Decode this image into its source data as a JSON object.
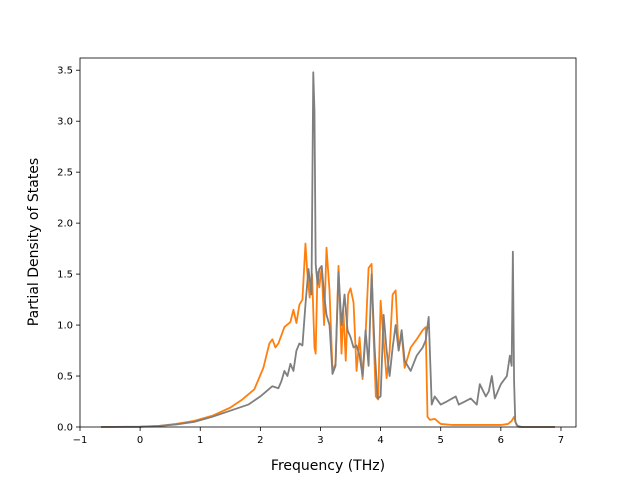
{
  "chart_data": {
    "type": "line",
    "title": "",
    "xlabel": "Frequency (THz)",
    "ylabel": "Partial Density of States",
    "xlim": [
      -1.0,
      7.25
    ],
    "ylim": [
      0.0,
      3.62
    ],
    "grid": false,
    "legend": "none",
    "x_ticks": [
      "−1",
      "0",
      "1",
      "2",
      "3",
      "4",
      "5",
      "6",
      "7"
    ],
    "x_tick_values": [
      -1,
      0,
      1,
      2,
      3,
      4,
      5,
      6,
      7
    ],
    "y_ticks": [
      "0.0",
      "0.5",
      "1.0",
      "1.5",
      "2.0",
      "2.5",
      "3.0",
      "3.5"
    ],
    "y_tick_values": [
      0,
      0.5,
      1.0,
      1.5,
      2.0,
      2.5,
      3.0,
      3.5
    ],
    "series": [
      {
        "color": "#ff7f0e",
        "x": [
          -0.65,
          0.0,
          0.3,
          0.6,
          0.9,
          1.2,
          1.5,
          1.7,
          1.9,
          2.05,
          2.15,
          2.2,
          2.25,
          2.3,
          2.4,
          2.5,
          2.55,
          2.6,
          2.65,
          2.7,
          2.75,
          2.78,
          2.82,
          2.86,
          2.9,
          2.92,
          2.95,
          2.98,
          3.02,
          3.06,
          3.1,
          3.15,
          3.2,
          3.25,
          3.3,
          3.35,
          3.38,
          3.42,
          3.46,
          3.5,
          3.55,
          3.6,
          3.65,
          3.7,
          3.75,
          3.8,
          3.85,
          3.88,
          3.92,
          3.96,
          4.0,
          4.05,
          4.1,
          4.15,
          4.2,
          4.25,
          4.3,
          4.35,
          4.4,
          4.5,
          4.6,
          4.7,
          4.75,
          4.78,
          4.82,
          4.9,
          5.0,
          5.2,
          5.6,
          6.0,
          6.12,
          6.18,
          6.22,
          6.26,
          6.3,
          6.9
        ],
        "values": [
          0.0,
          0.003,
          0.01,
          0.03,
          0.06,
          0.11,
          0.19,
          0.27,
          0.37,
          0.58,
          0.82,
          0.86,
          0.78,
          0.82,
          0.98,
          1.03,
          1.15,
          1.02,
          1.2,
          1.25,
          1.8,
          1.52,
          1.27,
          1.5,
          0.78,
          0.72,
          1.52,
          1.37,
          1.57,
          1.0,
          1.76,
          1.34,
          0.55,
          0.62,
          1.58,
          0.72,
          1.15,
          0.65,
          1.3,
          1.36,
          1.22,
          0.55,
          0.88,
          0.47,
          0.9,
          1.56,
          1.6,
          0.95,
          0.3,
          0.27,
          1.24,
          0.85,
          0.48,
          0.74,
          1.3,
          1.34,
          0.75,
          0.92,
          0.58,
          0.78,
          0.86,
          0.95,
          0.98,
          0.1,
          0.07,
          0.08,
          0.03,
          0.02,
          0.02,
          0.02,
          0.03,
          0.06,
          0.1,
          0.02,
          0.0,
          0.0
        ]
      },
      {
        "color": "#7f7f7f",
        "x": [
          -0.65,
          0.0,
          0.3,
          0.6,
          0.9,
          1.2,
          1.5,
          1.8,
          2.0,
          2.2,
          2.3,
          2.35,
          2.4,
          2.45,
          2.5,
          2.55,
          2.6,
          2.65,
          2.7,
          2.75,
          2.8,
          2.85,
          2.88,
          2.9,
          2.92,
          2.95,
          2.98,
          3.02,
          3.06,
          3.1,
          3.15,
          3.2,
          3.25,
          3.3,
          3.35,
          3.4,
          3.45,
          3.5,
          3.55,
          3.6,
          3.65,
          3.7,
          3.75,
          3.8,
          3.85,
          3.9,
          3.95,
          4.0,
          4.05,
          4.1,
          4.15,
          4.2,
          4.25,
          4.3,
          4.35,
          4.4,
          4.5,
          4.6,
          4.7,
          4.75,
          4.8,
          4.85,
          4.9,
          5.0,
          5.1,
          5.25,
          5.3,
          5.4,
          5.5,
          5.6,
          5.65,
          5.75,
          5.8,
          5.85,
          5.9,
          6.0,
          6.1,
          6.15,
          6.18,
          6.2,
          6.22,
          6.24,
          6.28,
          6.35,
          6.9
        ],
        "values": [
          0.0,
          0.002,
          0.01,
          0.025,
          0.05,
          0.1,
          0.16,
          0.22,
          0.3,
          0.4,
          0.38,
          0.45,
          0.55,
          0.5,
          0.62,
          0.55,
          0.75,
          0.82,
          0.8,
          1.2,
          1.55,
          1.3,
          3.48,
          3.1,
          1.6,
          1.4,
          1.55,
          1.58,
          1.3,
          1.1,
          1.0,
          0.52,
          0.6,
          1.52,
          1.0,
          1.3,
          0.95,
          0.88,
          0.78,
          0.8,
          0.7,
          0.5,
          0.95,
          0.6,
          1.5,
          0.78,
          0.28,
          0.3,
          1.1,
          0.75,
          0.5,
          0.78,
          1.0,
          0.75,
          0.95,
          0.65,
          0.55,
          0.7,
          0.78,
          0.85,
          1.08,
          0.22,
          0.3,
          0.22,
          0.25,
          0.3,
          0.22,
          0.25,
          0.28,
          0.22,
          0.42,
          0.3,
          0.35,
          0.5,
          0.28,
          0.42,
          0.5,
          0.7,
          0.6,
          1.72,
          0.45,
          0.05,
          0.01,
          0.0,
          0.0
        ]
      }
    ]
  }
}
